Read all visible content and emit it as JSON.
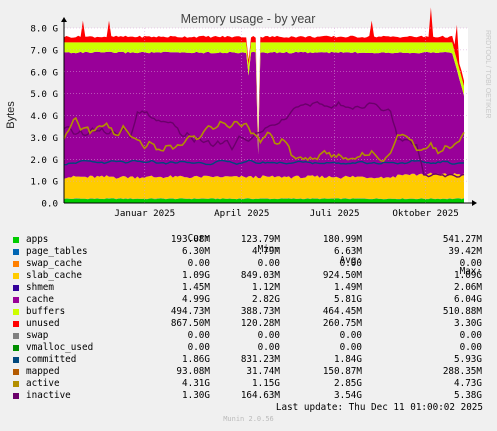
{
  "chart_data": {
    "type": "area",
    "title": "Memory usage - by year",
    "ylabel": "Bytes",
    "watermark": "RRDTOOL / TOBI OETIKER",
    "ylim": [
      0,
      8.0
    ],
    "yticks": [
      "0.0",
      "1.0 G",
      "2.0 G",
      "3.0 G",
      "4.0 G",
      "5.0 G",
      "6.0 G",
      "7.0 G",
      "8.0 G"
    ],
    "xticks": [
      {
        "label": "Januar 2025",
        "t": 0.2
      },
      {
        "label": "April 2025",
        "t": 0.44
      },
      {
        "label": "Juli 2025",
        "t": 0.67
      },
      {
        "label": "Oktober 2025",
        "t": 0.895
      }
    ],
    "colors": {
      "apps": "#00cc00",
      "page_tables": "#0066b3",
      "swap_cache": "#ff8000",
      "slab_cache": "#ffcc00",
      "shmem": "#330099",
      "cache": "#990099",
      "buffers": "#ccff00",
      "unused": "#ff0000",
      "swap": "#808080",
      "vmalloc_used": "#008f00",
      "committed": "#00487d",
      "mapped": "#b35a00",
      "active": "#b38f00",
      "inactive": "#6b006b"
    },
    "approx_stack_levels_G": {
      "apps": 0.19,
      "page_tables": 0.01,
      "slab_cache": 1.0,
      "cache": 5.7,
      "buffers": 0.46,
      "unused": 0.26,
      "total": 7.6
    },
    "approx_lines_G": {
      "committed": 1.85,
      "active": 2.85,
      "inactive": 3.5
    }
  },
  "legend": {
    "headers": {
      "cur": "Cur:",
      "min": "Min:",
      "avg": "Avg:",
      "max": "Max:"
    },
    "rows": [
      {
        "name": "apps",
        "color": "#00cc00",
        "cur": "193.08M",
        "min": "123.79M",
        "avg": "180.99M",
        "max": "541.27M"
      },
      {
        "name": "page_tables",
        "color": "#0066b3",
        "cur": "6.30M",
        "min": "4.79M",
        "avg": "6.63M",
        "max": "39.42M"
      },
      {
        "name": "swap_cache",
        "color": "#ff8000",
        "cur": "0.00",
        "min": "0.00",
        "avg": "0.00",
        "max": "0.00"
      },
      {
        "name": "slab_cache",
        "color": "#ffcc00",
        "cur": "1.09G",
        "min": "849.03M",
        "avg": "924.50M",
        "max": "1.09G"
      },
      {
        "name": "shmem",
        "color": "#330099",
        "cur": "1.45M",
        "min": "1.12M",
        "avg": "1.49M",
        "max": "2.06M"
      },
      {
        "name": "cache",
        "color": "#990099",
        "cur": "4.99G",
        "min": "2.82G",
        "avg": "5.81G",
        "max": "6.04G"
      },
      {
        "name": "buffers",
        "color": "#ccff00",
        "cur": "494.73M",
        "min": "388.73M",
        "avg": "464.45M",
        "max": "510.88M"
      },
      {
        "name": "unused",
        "color": "#ff0000",
        "cur": "867.50M",
        "min": "120.28M",
        "avg": "260.75M",
        "max": "3.30G"
      },
      {
        "name": "swap",
        "color": "#808080",
        "cur": "0.00",
        "min": "0.00",
        "avg": "0.00",
        "max": "0.00"
      },
      {
        "name": "vmalloc_used",
        "color": "#008f00",
        "cur": "0.00",
        "min": "0.00",
        "avg": "0.00",
        "max": "0.00"
      },
      {
        "name": "committed",
        "color": "#00487d",
        "cur": "1.86G",
        "min": "831.23M",
        "avg": "1.84G",
        "max": "5.93G"
      },
      {
        "name": "mapped",
        "color": "#b35a00",
        "cur": "93.08M",
        "min": "31.74M",
        "avg": "150.87M",
        "max": "288.35M"
      },
      {
        "name": "active",
        "color": "#b38f00",
        "cur": "4.31G",
        "min": "1.15G",
        "avg": "2.85G",
        "max": "4.73G"
      },
      {
        "name": "inactive",
        "color": "#6b006b",
        "cur": "1.30G",
        "min": "164.63M",
        "avg": "3.54G",
        "max": "5.38G"
      }
    ],
    "last_update": "Last update: Thu Dec 11 01:00:02 2025"
  },
  "footer": "Munin 2.0.56"
}
